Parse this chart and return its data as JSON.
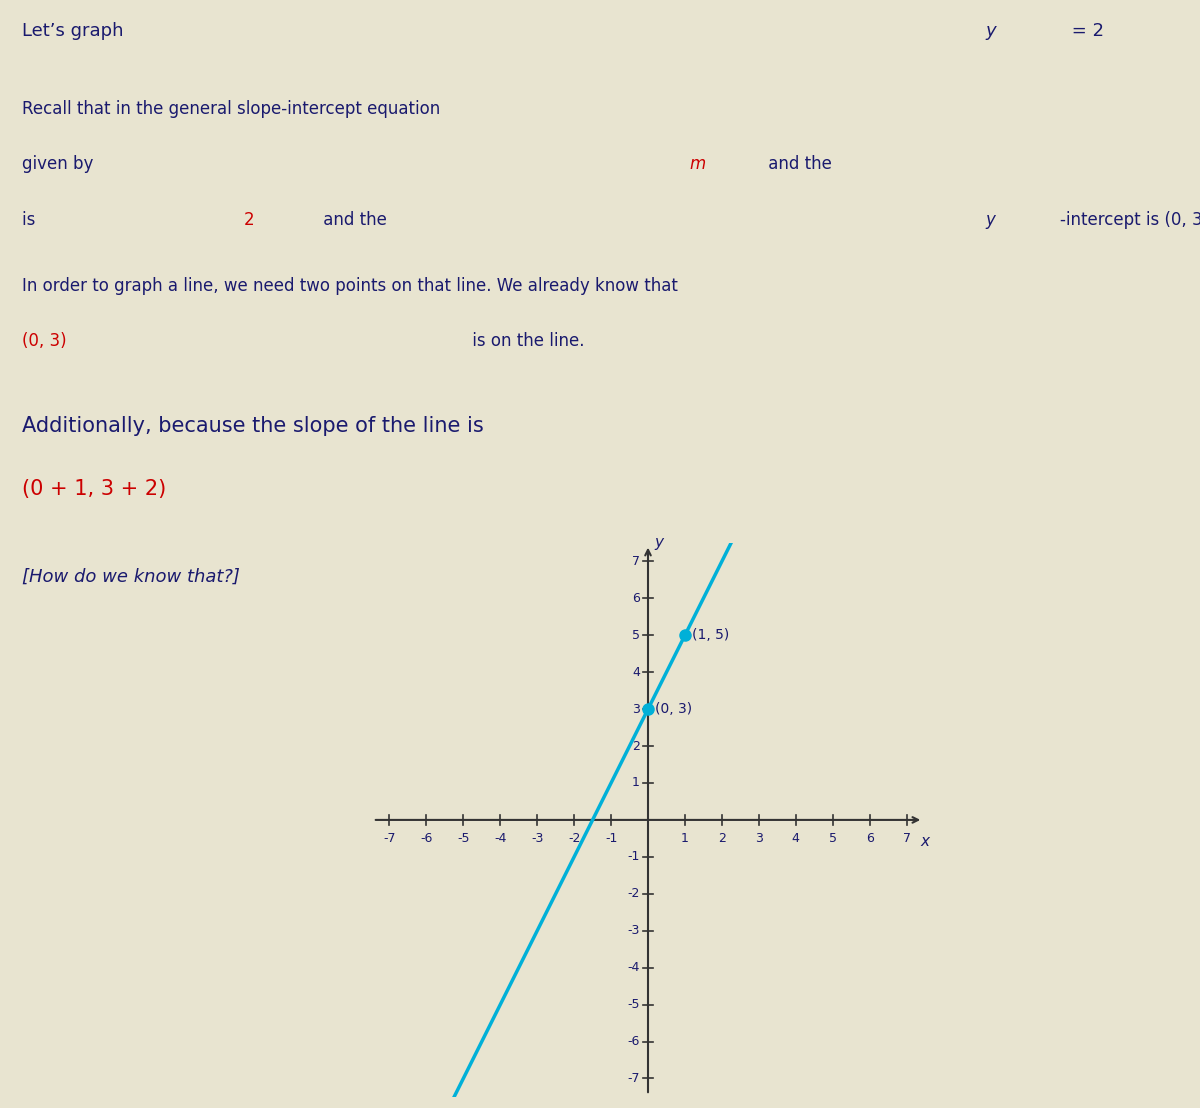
{
  "bg_color": "#e8e4d0",
  "text_color": "#1a1a6e",
  "highlight_color": "#cc0000",
  "line_color": "#00b0d8",
  "point_color": "#00b0d8",
  "axis_color": "#333333",
  "x_range": [
    -7,
    7
  ],
  "y_range": [
    -7,
    7
  ],
  "slope": 2,
  "intercept": 3,
  "point1": [
    0,
    3
  ],
  "point2": [
    1,
    5
  ],
  "point1_label": "(0, 3)",
  "point2_label": "(1, 5)",
  "x_label": "x",
  "y_label": "y"
}
